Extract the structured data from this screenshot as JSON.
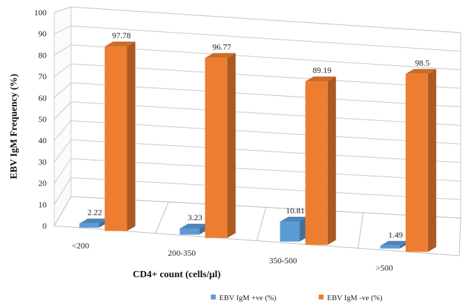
{
  "chart_data": {
    "type": "bar",
    "style": "3d-clustered-column",
    "categories": [
      "<200",
      "200-350",
      "350-500",
      ">500"
    ],
    "series": [
      {
        "name": "EBV IgM +ve (%)",
        "values": [
          2.22,
          3.23,
          10.81,
          1.49
        ],
        "labels": [
          "2.22",
          "3.23",
          "10.81",
          "1.49"
        ],
        "color": "#5B9BD5"
      },
      {
        "name": "EBV IgM -ve (%)",
        "values": [
          97.78,
          96.77,
          89.19,
          98.5
        ],
        "labels": [
          "97.78",
          "96.77",
          "89.19",
          "98.5"
        ],
        "color": "#ED7D31"
      }
    ],
    "xlabel": "CD4+ count (cells/µl)",
    "ylabel": "EBV IgM Frequency (%)",
    "ylim": [
      0,
      100
    ],
    "yticks": [
      0,
      10,
      20,
      30,
      40,
      50,
      60,
      70,
      80,
      90,
      100
    ],
    "grid": true,
    "legend_position": "bottom-right"
  }
}
